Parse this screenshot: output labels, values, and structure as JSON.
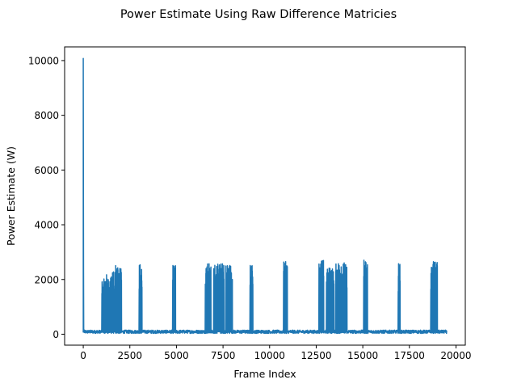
{
  "chart_data": {
    "type": "line",
    "title": "Power Estimate Using Raw Difference Matricies",
    "xlabel": "Frame Index",
    "ylabel": "Power Estimate (W)",
    "xlim": [
      -1000,
      20500
    ],
    "ylim": [
      -400,
      10500
    ],
    "xticks": [
      0,
      2500,
      5000,
      7500,
      10000,
      12500,
      15000,
      17500,
      20000
    ],
    "yticks": [
      0,
      2000,
      4000,
      6000,
      8000,
      10000
    ],
    "xtick_labels": [
      "0",
      "2500",
      "5000",
      "7500",
      "10000",
      "12500",
      "15000",
      "17500",
      "20000"
    ],
    "ytick_labels": [
      "0",
      "2000",
      "4000",
      "6000",
      "8000",
      "10000"
    ],
    "grid": false,
    "legend": "none",
    "series": [
      {
        "color": "#1f77b4",
        "baseline_range": [
          30,
          150
        ],
        "spike": {
          "x": 0,
          "value": 10080
        },
        "bursts": [
          {
            "start": 1000,
            "end": 1350,
            "peak": 2200
          },
          {
            "start": 1400,
            "end": 1650,
            "peak": 2300
          },
          {
            "start": 1700,
            "end": 2050,
            "peak": 2600
          },
          {
            "start": 3000,
            "end": 3150,
            "peak": 2620
          },
          {
            "start": 4800,
            "end": 4950,
            "peak": 2520
          },
          {
            "start": 6550,
            "end": 6850,
            "peak": 2680
          },
          {
            "start": 7000,
            "end": 7550,
            "peak": 2600
          },
          {
            "start": 7650,
            "end": 8000,
            "peak": 2580
          },
          {
            "start": 8950,
            "end": 9100,
            "peak": 2560
          },
          {
            "start": 10750,
            "end": 10950,
            "peak": 2650
          },
          {
            "start": 12650,
            "end": 12900,
            "peak": 2700
          },
          {
            "start": 13050,
            "end": 13450,
            "peak": 2450
          },
          {
            "start": 13550,
            "end": 14150,
            "peak": 2630
          },
          {
            "start": 15050,
            "end": 15250,
            "peak": 2770
          },
          {
            "start": 16900,
            "end": 17000,
            "peak": 2600
          },
          {
            "start": 18650,
            "end": 19000,
            "peak": 2660
          }
        ],
        "x_end": 19500
      }
    ]
  }
}
